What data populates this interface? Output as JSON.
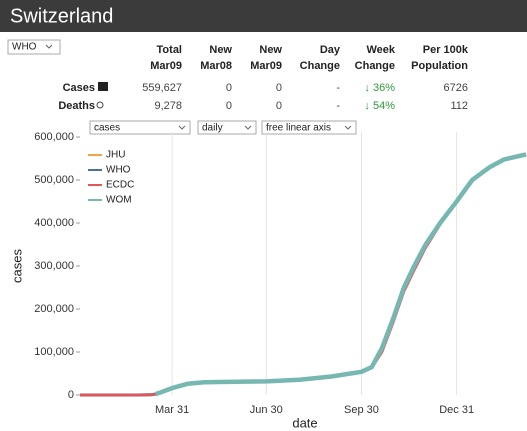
{
  "header": {
    "title": "Switzerland",
    "source": "WHO"
  },
  "table": {
    "columns": [
      [
        "Total",
        "Mar09"
      ],
      [
        "New",
        "Mar08"
      ],
      [
        "New",
        "Mar09"
      ],
      [
        "Day",
        "Change"
      ],
      [
        "Week",
        "Change"
      ],
      [
        "Per 100k",
        "Population"
      ]
    ],
    "rows": [
      {
        "label": "Cases",
        "cells": [
          "559,627",
          "0",
          "0",
          "-",
          "↓ 36%",
          "6726"
        ]
      },
      {
        "label": "Deaths",
        "cells": [
          "9,278",
          "0",
          "0",
          "-",
          "↓ 54%",
          "112"
        ]
      }
    ]
  },
  "controls": [
    "cases",
    "daily",
    "free linear axis"
  ],
  "chart_data": {
    "type": "line",
    "xlabel": "date",
    "ylabel": "cases",
    "x": [
      "Jan 01",
      "Feb 25",
      "Mar 10",
      "Mar 15",
      "Mar 20",
      "Mar 31",
      "Apr 15",
      "May 01",
      "Jun 01",
      "Jun 30",
      "Aug 01",
      "Sep 01",
      "Sep 30",
      "Oct 10",
      "Oct 20",
      "Oct 31",
      "Nov 10",
      "Nov 20",
      "Dec 01",
      "Dec 15",
      "Dec 31",
      "Jan 15",
      "Feb 01",
      "Feb 15",
      "Mar 08"
    ],
    "series": [
      {
        "name": "JHU",
        "color": "#f5a04a",
        "values": [
          0,
          0,
          500,
          2000,
          6000,
          16000,
          26000,
          29500,
          30900,
          31700,
          35500,
          43000,
          54000,
          65000,
          105000,
          175000,
          245000,
          295000,
          345000,
          398000,
          450000,
          500000,
          530000,
          548000,
          559600
        ]
      },
      {
        "name": "WHO",
        "color": "#4a6fa5",
        "values": [
          0,
          0,
          500,
          2000,
          6000,
          16000,
          26000,
          29500,
          30900,
          31700,
          35500,
          43000,
          54000,
          65000,
          108000,
          178000,
          248000,
          298000,
          348000,
          399000,
          450000,
          500000,
          530000,
          548000,
          559627
        ]
      },
      {
        "name": "ECDC",
        "color": "#e15759",
        "values": [
          0,
          0,
          500,
          2000,
          6000,
          16000,
          26000,
          29500,
          30900,
          31700,
          35500,
          43000,
          54000,
          63000,
          100000,
          170000,
          240000,
          290000,
          342000,
          396000,
          449000,
          499000,
          529000,
          547000,
          559000
        ]
      },
      {
        "name": "WOM",
        "color": "#76b7b2",
        "values": [
          null,
          null,
          null,
          2000,
          6000,
          16000,
          26000,
          29500,
          30900,
          31700,
          35500,
          43000,
          54000,
          65000,
          110000,
          180000,
          250000,
          300000,
          350000,
          400000,
          450000,
          500000,
          530000,
          548000,
          559627
        ]
      }
    ],
    "xlim": [
      "Jan 01",
      "Mar 09"
    ],
    "xticks": [
      "Mar 31",
      "Jun 30",
      "Sep 30",
      "Dec 31"
    ],
    "ylim": [
      0,
      600000
    ],
    "yticks": [
      {
        "value": 0,
        "label": "0"
      },
      {
        "value": 100000,
        "label": "100,000"
      },
      {
        "value": 200000,
        "label": "200,000"
      },
      {
        "value": 300000,
        "label": "300,000"
      },
      {
        "value": 400000,
        "label": "400,000"
      },
      {
        "value": 500000,
        "label": "500,000"
      },
      {
        "value": 600000,
        "label": "600,000"
      }
    ],
    "grid": "x",
    "legend": "upper left"
  }
}
